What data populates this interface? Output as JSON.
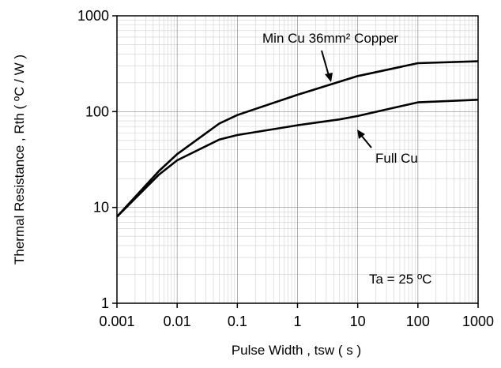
{
  "chart_data": {
    "type": "line",
    "title": "",
    "xlabel": "Pulse Width , tsw ( s )",
    "ylabel": "Thermal Resistance , Rth ( ºC / W )",
    "x_scale": "log",
    "y_scale": "log",
    "xlim": [
      0.001,
      1000
    ],
    "ylim": [
      1,
      1000
    ],
    "grid": true,
    "x_ticks": [
      0.001,
      0.01,
      0.1,
      1,
      10,
      100,
      1000
    ],
    "x_tick_labels": [
      "0.001",
      "0.01",
      "0.1",
      "1",
      "10",
      "100",
      "1000"
    ],
    "y_ticks": [
      1,
      10,
      100,
      1000
    ],
    "y_tick_labels": [
      "1",
      "10",
      "100",
      "1000"
    ],
    "series": [
      {
        "name": "Min Cu 36mm² Copper",
        "x": [
          0.001,
          0.005,
          0.01,
          0.05,
          0.1,
          1,
          10,
          100,
          1000
        ],
        "y": [
          8,
          24,
          36,
          75,
          92,
          150,
          235,
          320,
          335
        ]
      },
      {
        "name": "Full Cu",
        "x": [
          0.001,
          0.005,
          0.01,
          0.05,
          0.1,
          1,
          5,
          10,
          100,
          1000
        ],
        "y": [
          8,
          22,
          31,
          51,
          57,
          72,
          83,
          90,
          125,
          133
        ]
      }
    ],
    "annotations": [
      {
        "text": "Min Cu 36mm² Copper",
        "target_series": 0
      },
      {
        "text": "Full Cu",
        "target_series": 1
      },
      {
        "text": "Ta = 25 ºC"
      }
    ]
  }
}
